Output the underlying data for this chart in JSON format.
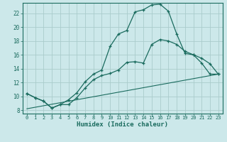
{
  "xlabel": "Humidex (Indice chaleur)",
  "bg_color": "#cce8ea",
  "grid_color": "#aacccc",
  "line_color": "#1a6b5e",
  "xlim": [
    -0.5,
    23.5
  ],
  "ylim": [
    7.5,
    23.5
  ],
  "xticks": [
    0,
    1,
    2,
    3,
    4,
    5,
    6,
    7,
    8,
    9,
    10,
    11,
    12,
    13,
    14,
    15,
    16,
    17,
    18,
    19,
    20,
    21,
    22,
    23
  ],
  "yticks": [
    8,
    10,
    12,
    14,
    16,
    18,
    20,
    22
  ],
  "line1_x": [
    0,
    1,
    2,
    3,
    4,
    5,
    6,
    7,
    8,
    9,
    10,
    11,
    12,
    13,
    14,
    15,
    16,
    17,
    18,
    19,
    20,
    21,
    22,
    23
  ],
  "line1_y": [
    10.4,
    9.8,
    9.3,
    8.3,
    8.8,
    8.8,
    9.8,
    11.2,
    12.4,
    13.0,
    13.3,
    13.8,
    14.9,
    15.0,
    14.8,
    17.5,
    18.2,
    18.0,
    17.5,
    16.5,
    16.0,
    15.5,
    14.7,
    13.2
  ],
  "line2_x": [
    0,
    1,
    2,
    3,
    4,
    5,
    6,
    7,
    8,
    9,
    10,
    11,
    12,
    13,
    14,
    15,
    16,
    17,
    18,
    19,
    20,
    21,
    22,
    23
  ],
  "line2_y": [
    10.4,
    9.8,
    9.3,
    8.3,
    8.8,
    9.5,
    10.5,
    12.1,
    13.2,
    13.8,
    17.2,
    19.0,
    19.5,
    22.2,
    22.5,
    23.2,
    23.3,
    22.3,
    19.0,
    16.2,
    16.0,
    14.8,
    13.2,
    13.2
  ],
  "line3_x": [
    0,
    23
  ],
  "line3_y": [
    8.2,
    13.2
  ]
}
